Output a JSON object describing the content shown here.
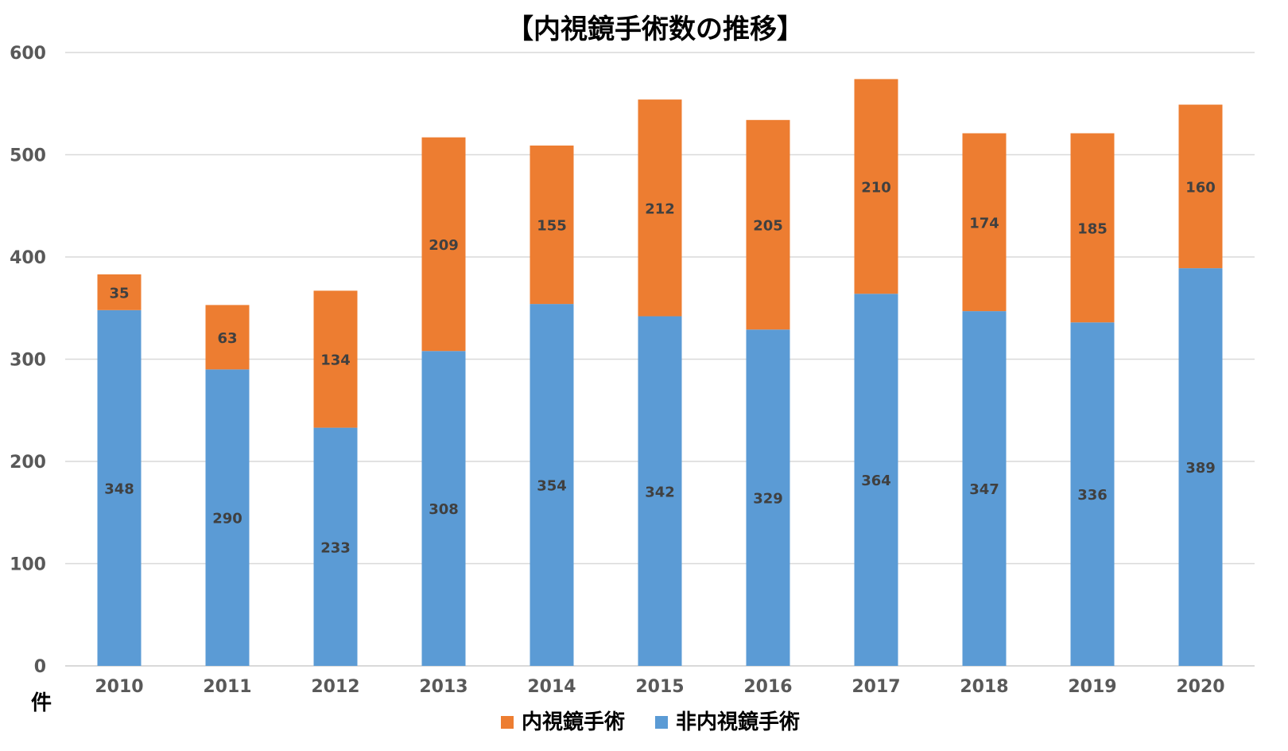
{
  "chart_data": {
    "type": "bar",
    "stacked": true,
    "title": "【内視鏡手術数の推移】",
    "unit_label": "件",
    "categories": [
      "2010",
      "2011",
      "2012",
      "2013",
      "2014",
      "2015",
      "2016",
      "2017",
      "2018",
      "2019",
      "2020"
    ],
    "series": [
      {
        "name": "非内視鏡手術",
        "color": "#5b9bd5",
        "values": [
          348,
          290,
          233,
          308,
          354,
          342,
          329,
          364,
          347,
          336,
          389
        ]
      },
      {
        "name": "内視鏡手術",
        "color": "#ed7d31",
        "values": [
          35,
          63,
          134,
          209,
          155,
          212,
          205,
          210,
          174,
          185,
          160
        ]
      }
    ],
    "ylim": [
      0,
      600
    ],
    "yticks": [
      0,
      100,
      200,
      300,
      400,
      500,
      600
    ],
    "grid": true,
    "legend": {
      "position": "bottom",
      "order": [
        "内視鏡手術",
        "非内視鏡手術"
      ]
    }
  }
}
